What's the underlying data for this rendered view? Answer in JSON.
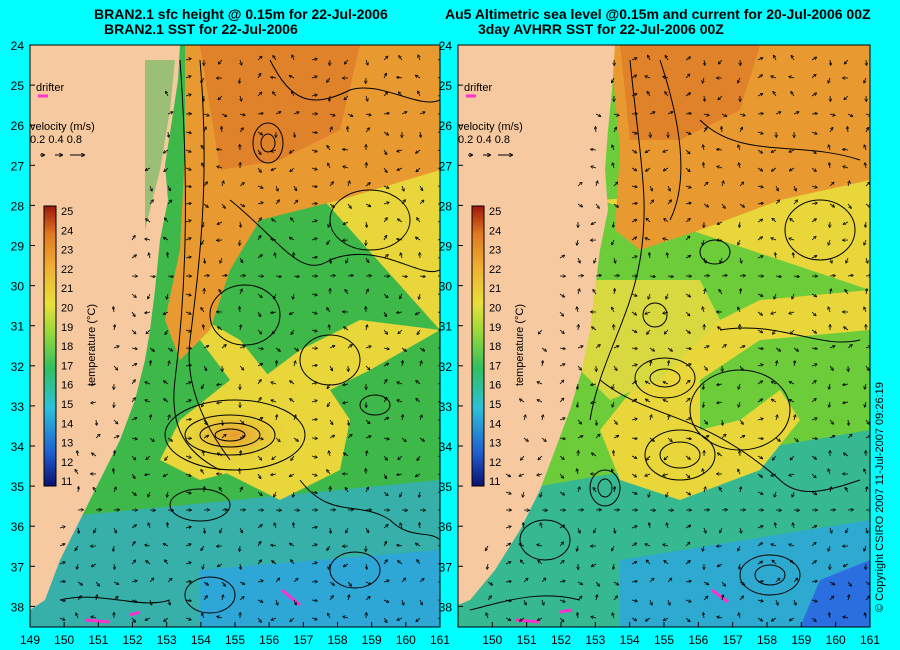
{
  "left_panel": {
    "title_line1": "BRAN2.1 sfc height @ 0.15m for 22-Jul-2006",
    "title_line2": "BRAN2.1 SST for 22-Jul-2006",
    "drifter_label": "drifter",
    "velocity_label": "velocity (m/s)",
    "velocity_scale": "0.2 0.4 0.8",
    "colorbar_label": "temperature (°C)"
  },
  "right_panel": {
    "title_line1": "Au5 Altimetric sea level  @0.15m and current for 20-Jul-2006 00Z",
    "title_line2": "3day AVHRR SST for 22-Jul-2006 00Z",
    "drifter_label": "drifter",
    "velocity_label": "velocity (m/s)",
    "velocity_scale": "0.2 0.4 0.8",
    "colorbar_label": "temperature (°C)"
  },
  "copyright": "© Copyright CSIRO 2007  11-Jul-2007 09:26:19",
  "lat_ticks": [
    "24",
    "25",
    "26",
    "27",
    "28",
    "29",
    "30",
    "31",
    "32",
    "33",
    "34",
    "35",
    "36",
    "37",
    "38"
  ],
  "lon_ticks_left": [
    "149",
    "150",
    "151",
    "152",
    "153",
    "154",
    "155",
    "156",
    "157",
    "158",
    "159",
    "160",
    "161"
  ],
  "lon_ticks_right": [
    "150",
    "151",
    "152",
    "153",
    "154",
    "155",
    "156",
    "157",
    "158",
    "159",
    "160",
    "161"
  ],
  "colorbar_ticks": [
    "25",
    "24",
    "23",
    "22",
    "21",
    "20",
    "19",
    "18",
    "17",
    "16",
    "15",
    "14",
    "13",
    "12",
    "11"
  ],
  "colors": {
    "background": "#00ffff",
    "land": "#f6c9a0",
    "warm": "#e0822a",
    "mid": "#e8d63a",
    "cool": "#3fb84a",
    "cold": "#2ea6d6",
    "drifter": "#ff33cc"
  }
}
